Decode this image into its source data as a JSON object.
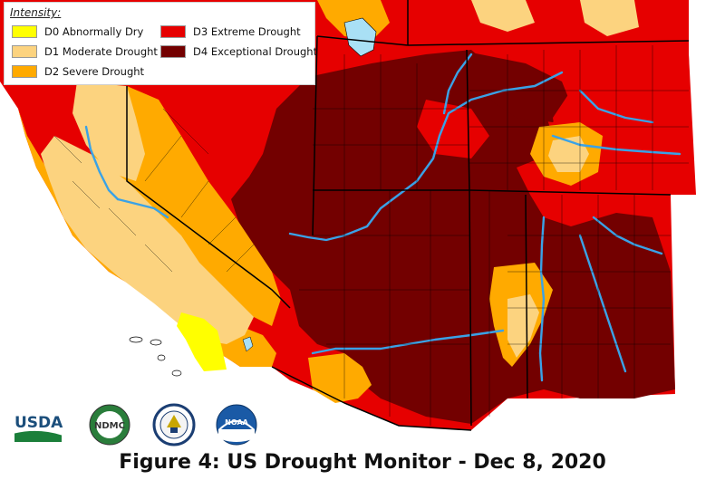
{
  "legend": {
    "title": "Intensity:",
    "items": [
      {
        "code": "D0",
        "label": "D0 Abnormally Dry",
        "color": "#ffff00"
      },
      {
        "code": "D1",
        "label": "D1 Moderate Drought",
        "color": "#fcd37f"
      },
      {
        "code": "D2",
        "label": "D2 Severe Drought",
        "color": "#ffaa00"
      },
      {
        "code": "D3",
        "label": "D3 Extreme Drought",
        "color": "#e60000"
      },
      {
        "code": "D4",
        "label": "D4 Exceptional Drought",
        "color": "#730000"
      }
    ]
  },
  "logos": {
    "usda": "USDA",
    "ndmc": "NDMC",
    "noaa": "NOAA",
    "commerce_icon": "department-of-commerce-seal-icon"
  },
  "caption": "Figure 4: US Drought Monitor - Dec 8, 2020",
  "colors": {
    "water": "#a9e0f5",
    "river": "#3aa2e6",
    "boundary": "#000000"
  }
}
